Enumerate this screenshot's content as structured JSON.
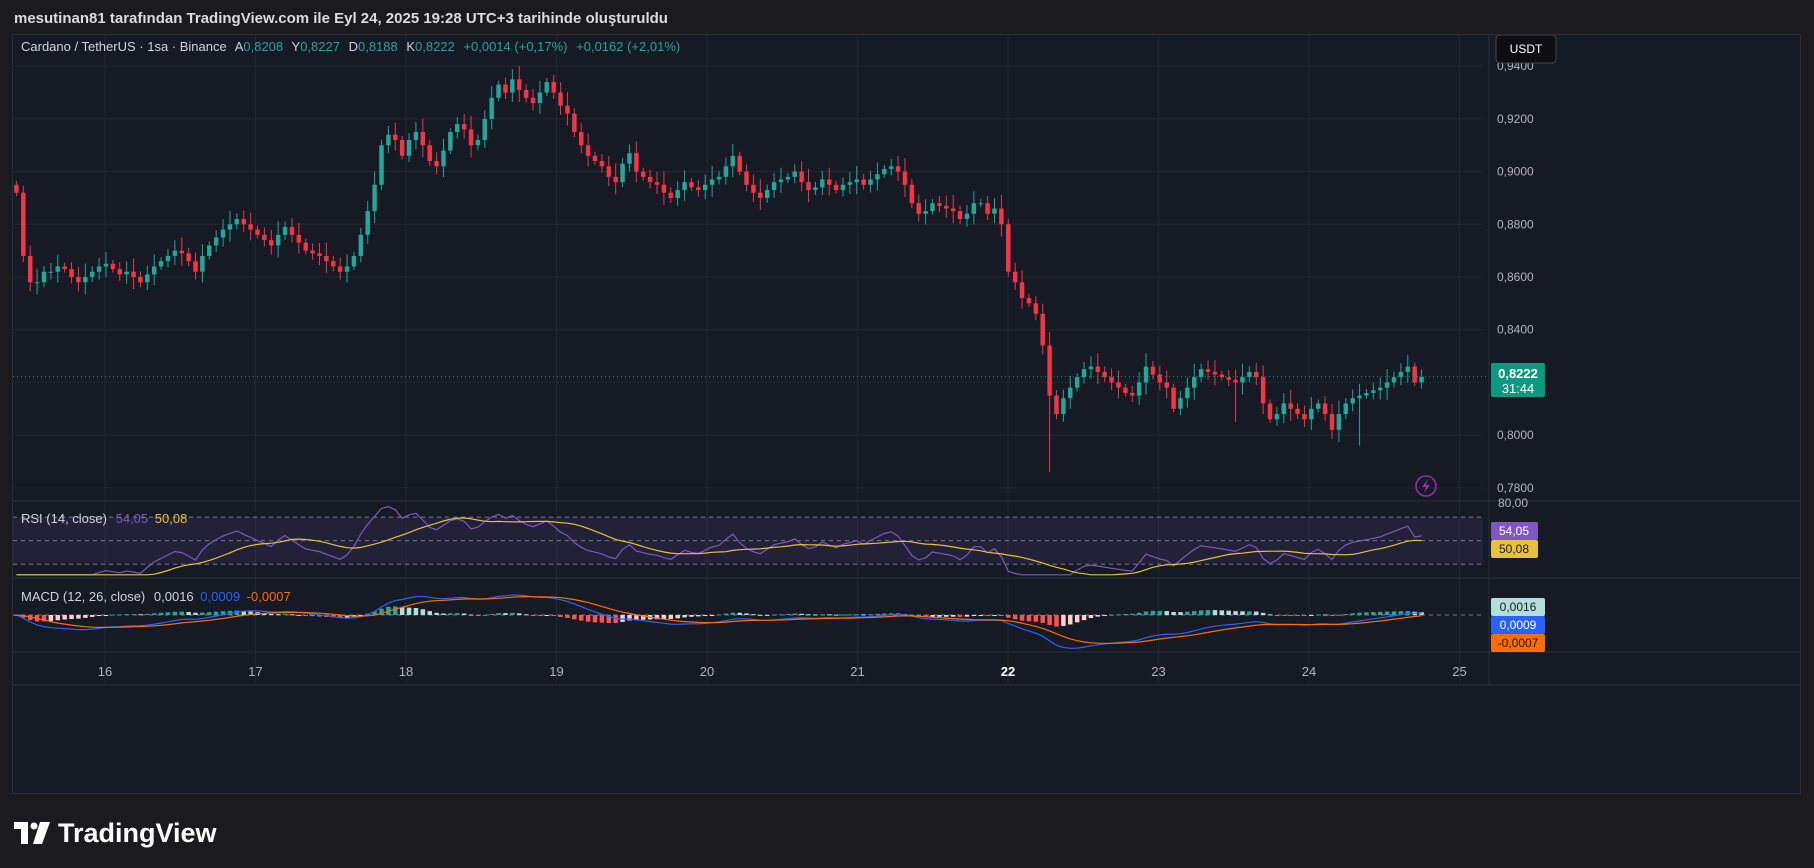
{
  "caption": "mesutinan81 tarafından TradingView.com ile Eyl 24, 2025 19:28 UTC+3 tarihinde oluşturuldu",
  "brand": "TradingView",
  "currency_button": "USDT",
  "legend": {
    "symbol": "Cardano / TetherUS · 1sa · Binance",
    "open_label": "A",
    "open": "0,8208",
    "high_label": "Y",
    "high": "0,8227",
    "low_label": "D",
    "low": "0,8188",
    "close_label": "K",
    "close": "0,8222",
    "change": "+0,0014 (+0,17%)",
    "change2": "+0,0162 (+2,01%)"
  },
  "price_badge": {
    "value": "0,8222",
    "countdown": "31:44"
  },
  "rsi": {
    "label": "RSI (14, close)",
    "value": "54,05",
    "ma": "50,08",
    "top_tick": "80,00"
  },
  "macd": {
    "label": "MACD (12, 26, close)",
    "hist": "0,0016",
    "macd": "0,0009",
    "signal": "-0,0007"
  },
  "colors": {
    "up": "#26a69a",
    "down": "#f23645",
    "rsi": "#7e57c2",
    "rsi_ma": "#e6c13a",
    "macd": "#2962ff",
    "signal": "#ff6d00",
    "badge": "#0c9981"
  },
  "chart_data": [
    {
      "type": "candlestick",
      "title": "Cardano / TetherUS · 1sa · Binance",
      "x_labels": [
        "16",
        "17",
        "18",
        "19",
        "20",
        "21",
        "22",
        "23",
        "24",
        "25"
      ],
      "y_ticks": [
        "0,9400",
        "0,9200",
        "0,9000",
        "0,8800",
        "0,8600",
        "0,8400",
        "0,8200",
        "0,8000",
        "0,7800"
      ],
      "ylim": [
        0.775,
        0.945
      ],
      "last_price": 0.8222,
      "closes": [
        0.892,
        0.868,
        0.858,
        0.858,
        0.862,
        0.862,
        0.864,
        0.863,
        0.86,
        0.858,
        0.86,
        0.862,
        0.864,
        0.865,
        0.863,
        0.861,
        0.862,
        0.86,
        0.858,
        0.861,
        0.864,
        0.866,
        0.868,
        0.87,
        0.869,
        0.866,
        0.862,
        0.868,
        0.872,
        0.875,
        0.878,
        0.88,
        0.882,
        0.88,
        0.878,
        0.876,
        0.874,
        0.872,
        0.876,
        0.879,
        0.876,
        0.873,
        0.87,
        0.869,
        0.868,
        0.866,
        0.864,
        0.862,
        0.864,
        0.868,
        0.876,
        0.885,
        0.895,
        0.91,
        0.914,
        0.912,
        0.906,
        0.912,
        0.915,
        0.91,
        0.904,
        0.902,
        0.908,
        0.915,
        0.918,
        0.916,
        0.91,
        0.912,
        0.92,
        0.928,
        0.933,
        0.93,
        0.935,
        0.931,
        0.928,
        0.926,
        0.93,
        0.934,
        0.93,
        0.925,
        0.922,
        0.915,
        0.91,
        0.906,
        0.904,
        0.902,
        0.898,
        0.896,
        0.903,
        0.907,
        0.9,
        0.898,
        0.896,
        0.895,
        0.892,
        0.89,
        0.893,
        0.896,
        0.894,
        0.893,
        0.895,
        0.897,
        0.898,
        0.902,
        0.906,
        0.9,
        0.895,
        0.892,
        0.89,
        0.893,
        0.896,
        0.897,
        0.898,
        0.9,
        0.896,
        0.893,
        0.894,
        0.897,
        0.895,
        0.893,
        0.895,
        0.896,
        0.897,
        0.895,
        0.897,
        0.899,
        0.901,
        0.902,
        0.9,
        0.895,
        0.888,
        0.884,
        0.885,
        0.888,
        0.887,
        0.886,
        0.885,
        0.882,
        0.884,
        0.888,
        0.888,
        0.884,
        0.886,
        0.88,
        0.862,
        0.858,
        0.852,
        0.85,
        0.846,
        0.834,
        0.815,
        0.808,
        0.814,
        0.818,
        0.822,
        0.825,
        0.826,
        0.824,
        0.822,
        0.82,
        0.818,
        0.816,
        0.815,
        0.82,
        0.826,
        0.823,
        0.82,
        0.818,
        0.81,
        0.814,
        0.818,
        0.822,
        0.825,
        0.824,
        0.823,
        0.822,
        0.821,
        0.82,
        0.822,
        0.824,
        0.822,
        0.812,
        0.806,
        0.808,
        0.812,
        0.81,
        0.808,
        0.806,
        0.81,
        0.812,
        0.808,
        0.802,
        0.808,
        0.812,
        0.814,
        0.815,
        0.816,
        0.817,
        0.818,
        0.82,
        0.822,
        0.824,
        0.826,
        0.82,
        0.8222
      ]
    },
    {
      "type": "line",
      "title": "RSI (14, close)",
      "ylim": [
        20,
        82
      ],
      "bands": [
        70,
        50,
        30
      ],
      "series": [
        {
          "name": "RSI",
          "last": 54.05
        },
        {
          "name": "RSI MA",
          "last": 50.08
        }
      ]
    },
    {
      "type": "bar",
      "title": "MACD (12, 26, close)",
      "series": [
        {
          "name": "Histogram",
          "last": 0.0016
        },
        {
          "name": "MACD",
          "last": 0.0009
        },
        {
          "name": "Signal",
          "last": -0.0007
        }
      ]
    }
  ]
}
